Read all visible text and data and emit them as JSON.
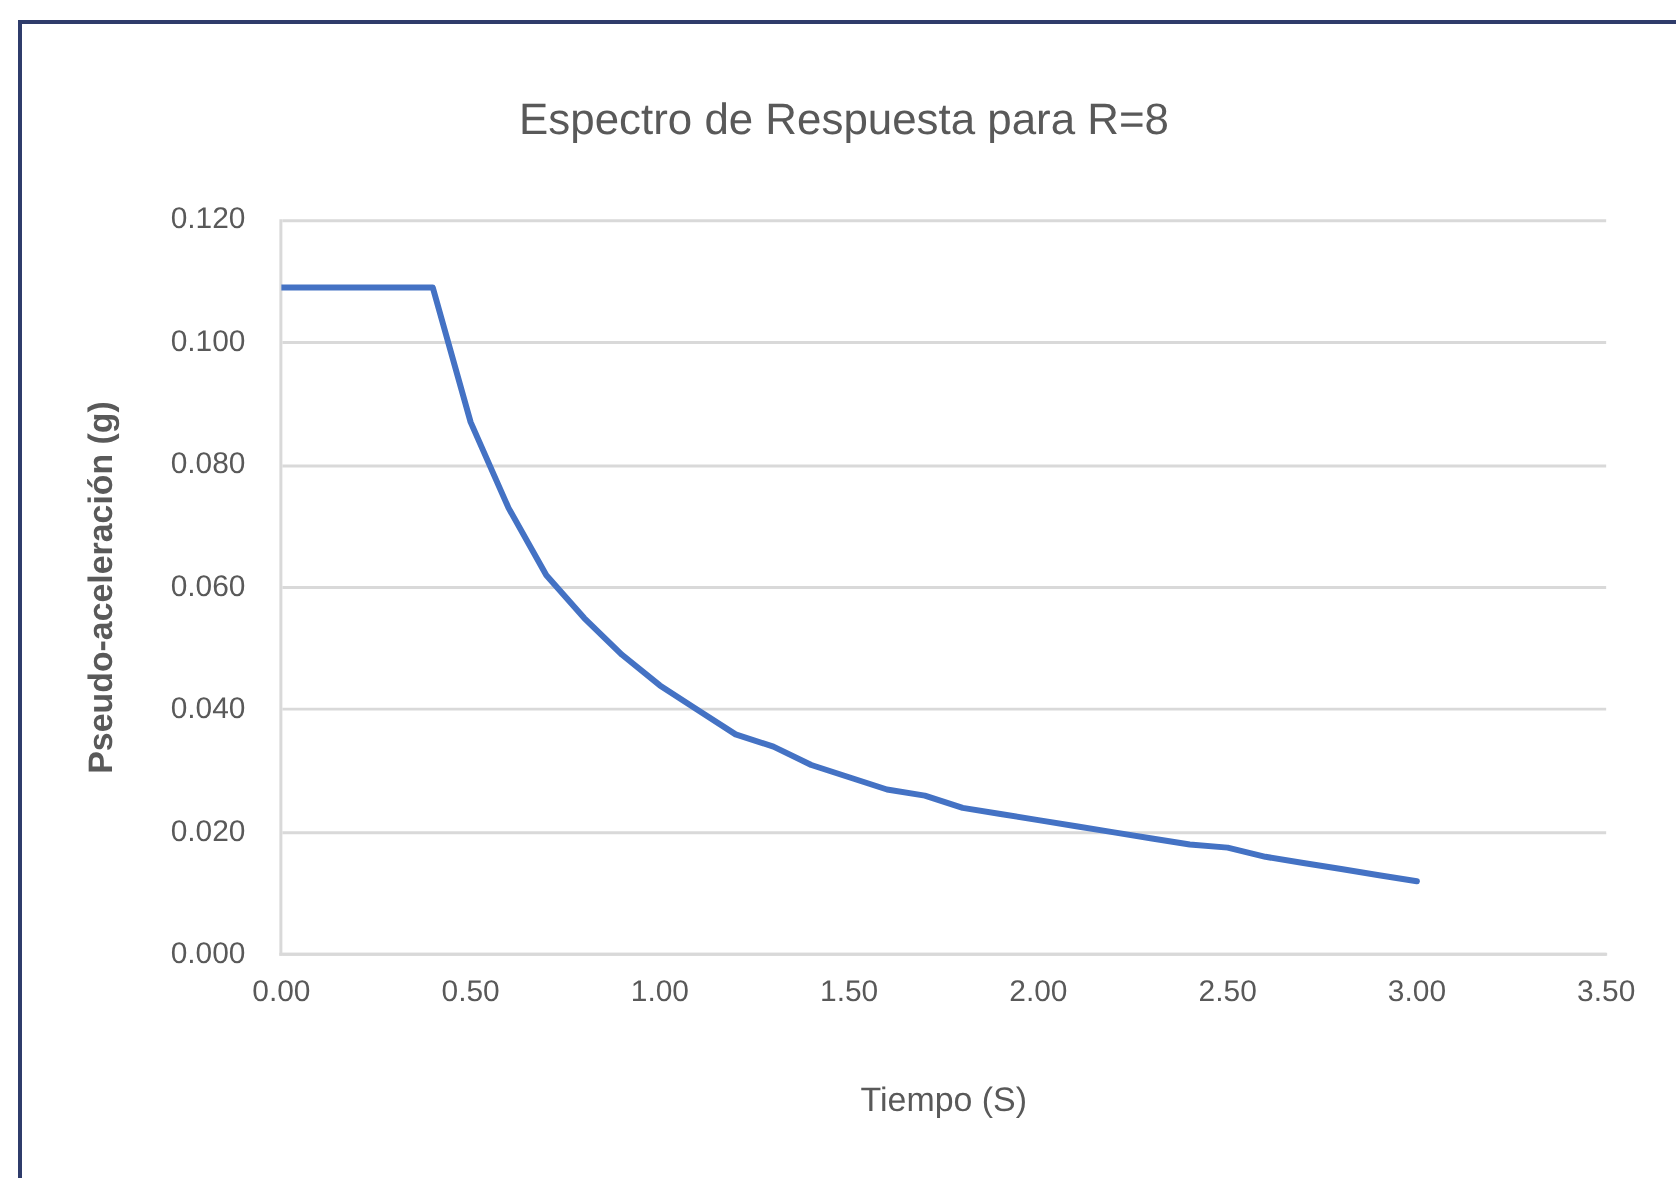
{
  "chart_data": {
    "type": "line",
    "title": "Espectro de Respuesta para R=8",
    "xlabel": "Tiempo (S)",
    "ylabel": "Pseudo-aceleración (g)",
    "x": [
      0,
      0.1,
      0.2,
      0.3,
      0.4,
      0.5,
      0.6,
      0.7,
      0.8,
      0.9,
      1.0,
      1.1,
      1.2,
      1.3,
      1.4,
      1.5,
      1.6,
      1.7,
      1.8,
      1.9,
      2.0,
      2.1,
      2.2,
      2.3,
      2.4,
      2.5,
      2.6,
      2.7,
      2.8,
      2.9,
      3.0
    ],
    "values": [
      0.109,
      0.109,
      0.109,
      0.109,
      0.109,
      0.087,
      0.073,
      0.062,
      0.055,
      0.049,
      0.044,
      0.04,
      0.036,
      0.034,
      0.031,
      0.029,
      0.027,
      0.026,
      0.024,
      0.023,
      0.022,
      0.021,
      0.02,
      0.019,
      0.018,
      0.0175,
      0.016,
      0.015,
      0.014,
      0.013,
      0.012
    ],
    "color": "#4472c4",
    "xlim": [
      0,
      3.5
    ],
    "xticks": [
      {
        "value": 0,
        "label": "0.00"
      },
      {
        "value": 0.5,
        "label": "0.50"
      },
      {
        "value": 1,
        "label": "1.00"
      },
      {
        "value": 1.5,
        "label": "1.50"
      },
      {
        "value": 2,
        "label": "2.00"
      },
      {
        "value": 2.5,
        "label": "2.50"
      },
      {
        "value": 3,
        "label": "3.00"
      },
      {
        "value": 3.5,
        "label": "3.50"
      }
    ],
    "ylim": [
      0,
      0.12
    ],
    "yticks": [
      {
        "value": 0,
        "label": "0.000"
      },
      {
        "value": 0.02,
        "label": "0.020"
      },
      {
        "value": 0.04,
        "label": "0.040"
      },
      {
        "value": 0.06,
        "label": "0.060"
      },
      {
        "value": 0.08,
        "label": "0.080"
      },
      {
        "value": 0.1,
        "label": "0.100"
      },
      {
        "value": 0.12,
        "label": "0.120"
      }
    ],
    "grid": "y",
    "marker": "none",
    "line_style": "solid"
  }
}
